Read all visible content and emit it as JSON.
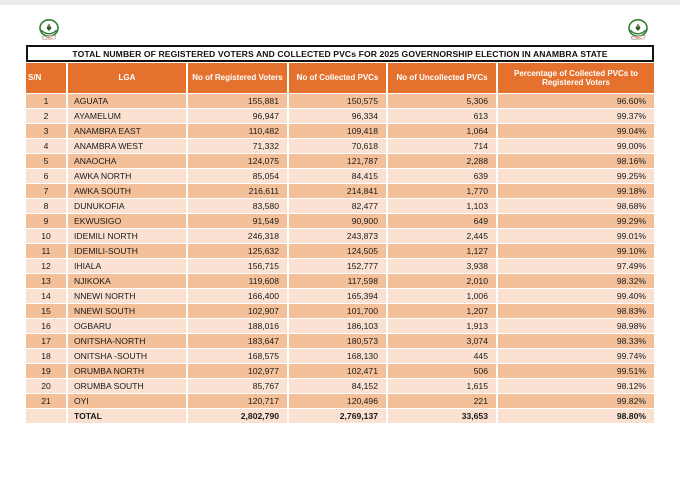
{
  "page": {
    "background": "#ffffff",
    "top_strip_color": "#ececec"
  },
  "logos": {
    "left": "inec-emblem-icon",
    "right": "inec-emblem-icon"
  },
  "colors": {
    "header_bg": "#e4722e",
    "row_odd_bg": "#f4c09a",
    "row_even_bg": "#fae1d1",
    "header_text": "#ffffff",
    "body_text": "#1a1a1a",
    "title_border": "#111111"
  },
  "table": {
    "title": "TOTAL NUMBER OF REGISTERED VOTERS AND COLLECTED PVCs FOR 2025 GOVERNORSHIP ELECTION IN ANAMBRA STATE",
    "columns": [
      "S/N",
      "LGA",
      "No of Registered Voters",
      "No of Collected PVCs",
      "No of Uncollected PVCs",
      "Percentage of Collected PVCs to Registered Voters"
    ],
    "rows": [
      [
        "1",
        "AGUATA",
        "155,881",
        "150,575",
        "5,306",
        "96.60%"
      ],
      [
        "2",
        "AYAMELUM",
        "96,947",
        "96,334",
        "613",
        "99.37%"
      ],
      [
        "3",
        "ANAMBRA EAST",
        "110,482",
        "109,418",
        "1,064",
        "99.04%"
      ],
      [
        "4",
        "ANAMBRA WEST",
        "71,332",
        "70,618",
        "714",
        "99.00%"
      ],
      [
        "5",
        "ANAOCHA",
        "124,075",
        "121,787",
        "2,288",
        "98.16%"
      ],
      [
        "6",
        "AWKA NORTH",
        "85,054",
        "84,415",
        "639",
        "99.25%"
      ],
      [
        "7",
        "AWKA SOUTH",
        "216,611",
        "214,841",
        "1,770",
        "99.18%"
      ],
      [
        "8",
        "DUNUKOFIA",
        "83,580",
        "82,477",
        "1,103",
        "98.68%"
      ],
      [
        "9",
        "EKWUSIGO",
        "91,549",
        "90,900",
        "649",
        "99.29%"
      ],
      [
        "10",
        "IDEMILI NORTH",
        "246,318",
        "243,873",
        "2,445",
        "99.01%"
      ],
      [
        "11",
        "IDEMILI-SOUTH",
        "125,632",
        "124,505",
        "1,127",
        "99.10%"
      ],
      [
        "12",
        "IHIALA",
        "156,715",
        "152,777",
        "3,938",
        "97.49%"
      ],
      [
        "13",
        "NJIKOKA",
        "119,608",
        "117,598",
        "2,010",
        "98.32%"
      ],
      [
        "14",
        "NNEWI NORTH",
        "166,400",
        "165,394",
        "1,006",
        "99.40%"
      ],
      [
        "15",
        "NNEWI SOUTH",
        "102,907",
        "101,700",
        "1,207",
        "98.83%"
      ],
      [
        "16",
        "OGBARU",
        "188,016",
        "186,103",
        "1,913",
        "98.98%"
      ],
      [
        "17",
        "ONITSHA-NORTH",
        "183,647",
        "180,573",
        "3,074",
        "98.33%"
      ],
      [
        "18",
        "ONITSHA -SOUTH",
        "168,575",
        "168,130",
        "445",
        "99.74%"
      ],
      [
        "19",
        "ORUMBA NORTH",
        "102,977",
        "102,471",
        "506",
        "99.51%"
      ],
      [
        "20",
        "ORUMBA  SOUTH",
        "85,767",
        "84,152",
        "1,615",
        "98.12%"
      ],
      [
        "21",
        "OYI",
        "120,717",
        "120,496",
        "221",
        "99.82%"
      ]
    ],
    "total_row": [
      "",
      "TOTAL",
      "2,802,790",
      "2,769,137",
      "33,653",
      "98.80%"
    ]
  }
}
